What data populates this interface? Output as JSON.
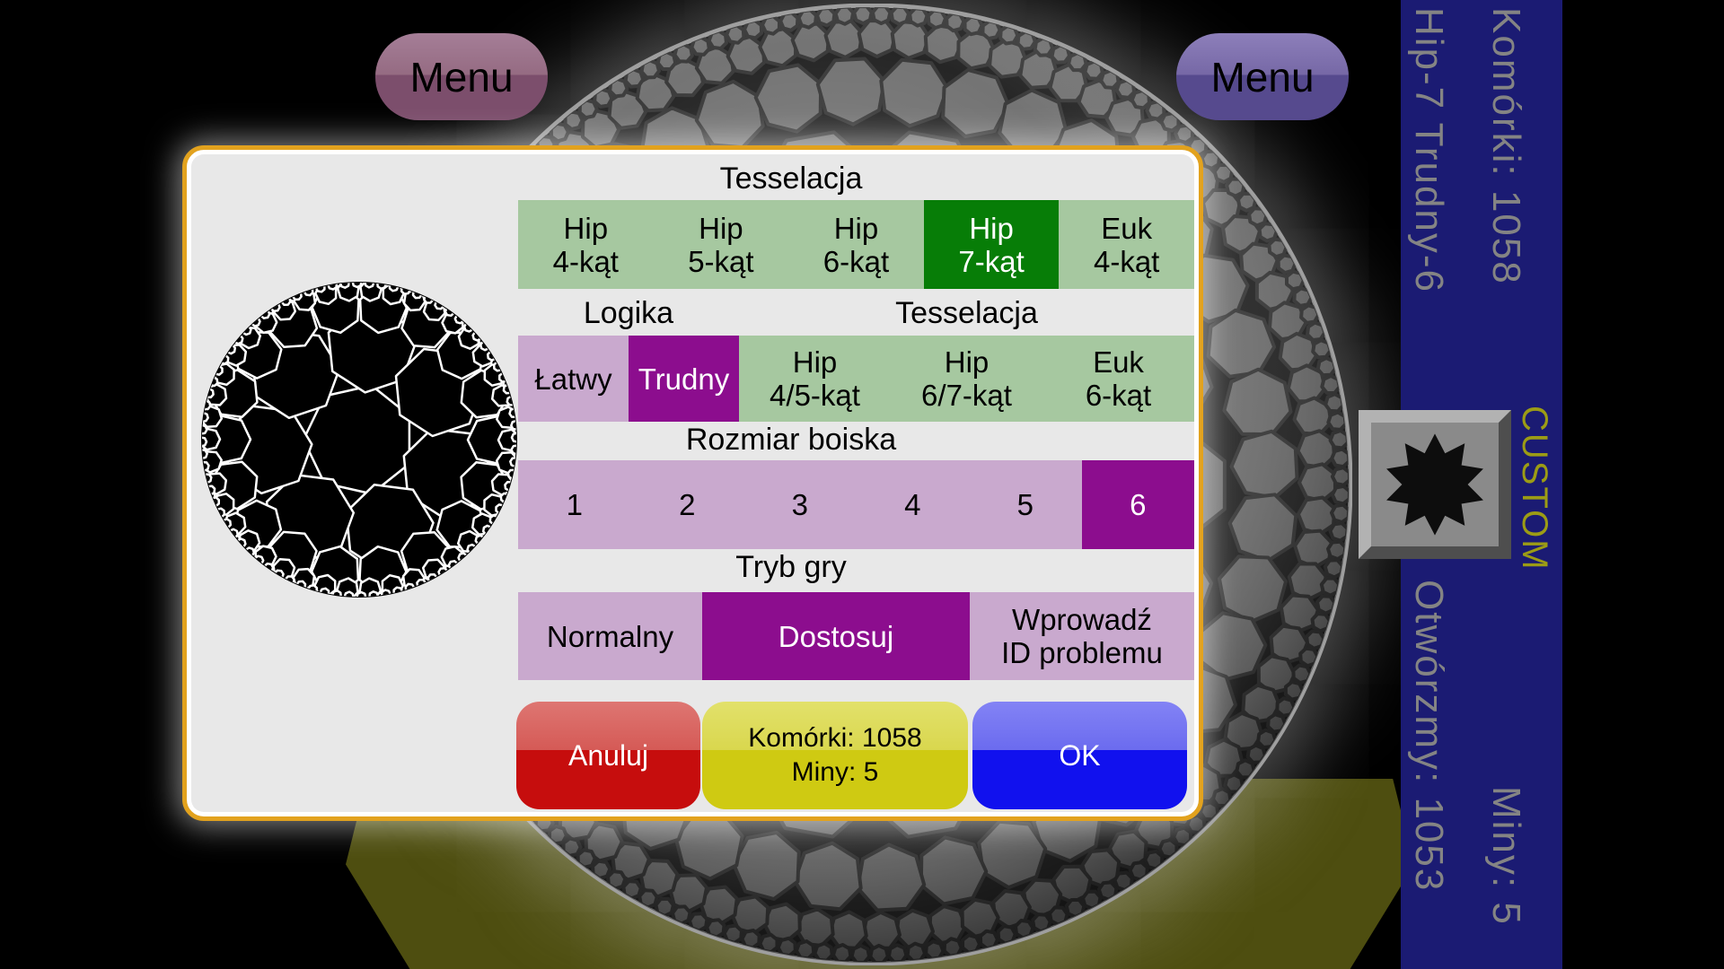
{
  "menus": {
    "left": "Menu",
    "right": "Menu"
  },
  "dialog": {
    "tessellation": {
      "header": "Tesselacja",
      "options": [
        {
          "line1": "Hip",
          "line2": "4-kąt",
          "selected": false
        },
        {
          "line1": "Hip",
          "line2": "5-kąt",
          "selected": false
        },
        {
          "line1": "Hip",
          "line2": "6-kąt",
          "selected": false
        },
        {
          "line1": "Hip",
          "line2": "7-kąt",
          "selected": true
        },
        {
          "line1": "Euk",
          "line2": "4-kąt",
          "selected": false
        }
      ]
    },
    "logic": {
      "header": "Logika",
      "options": [
        {
          "label": "Łatwy",
          "selected": false
        },
        {
          "label": "Trudny",
          "selected": true
        }
      ]
    },
    "tessellation_pair": {
      "header": "Tesselacja",
      "options": [
        {
          "line1": "Hip",
          "line2": "4/5-kąt",
          "selected": false
        },
        {
          "line1": "Hip",
          "line2": "6/7-kąt",
          "selected": false
        },
        {
          "line1": "Euk",
          "line2": "6-kąt",
          "selected": false
        }
      ]
    },
    "board_size": {
      "header": "Rozmiar boiska",
      "options": [
        {
          "label": "1",
          "selected": false
        },
        {
          "label": "2",
          "selected": false
        },
        {
          "label": "3",
          "selected": false
        },
        {
          "label": "4",
          "selected": false
        },
        {
          "label": "5",
          "selected": false
        },
        {
          "label": "6",
          "selected": true
        }
      ]
    },
    "game_mode": {
      "header": "Tryb gry",
      "options": [
        {
          "label": "Normalny",
          "selected": false
        },
        {
          "label": "Dostosuj",
          "selected": true
        },
        {
          "line1": "Wprowadź",
          "line2": "ID problemu",
          "selected": false
        }
      ]
    },
    "footer": {
      "cancel": "Anuluj",
      "info_line1": "Komórki: 1058",
      "info_line2": "Miny: 5",
      "ok": "OK"
    }
  },
  "sidebar": {
    "cells": "Komórki: 1058",
    "mode": "Hip-7 Trudny-6",
    "custom": "CUSTOM",
    "open": "Otwórzmy: 1053",
    "mines": "Miny: 5"
  },
  "colors": {
    "dialog_border": "#e2a21e",
    "green_light": "#a6c8a0",
    "green_selected": "#077d07",
    "purple_light": "#c9a9ce",
    "purple_selected": "#8c0d8e",
    "cancel_red": "#c60d0d",
    "info_yellow": "#cfca12",
    "ok_blue": "#1111ee",
    "sidebar_blue": "#1b1b73",
    "custom_yellow": "#9c9c15"
  }
}
